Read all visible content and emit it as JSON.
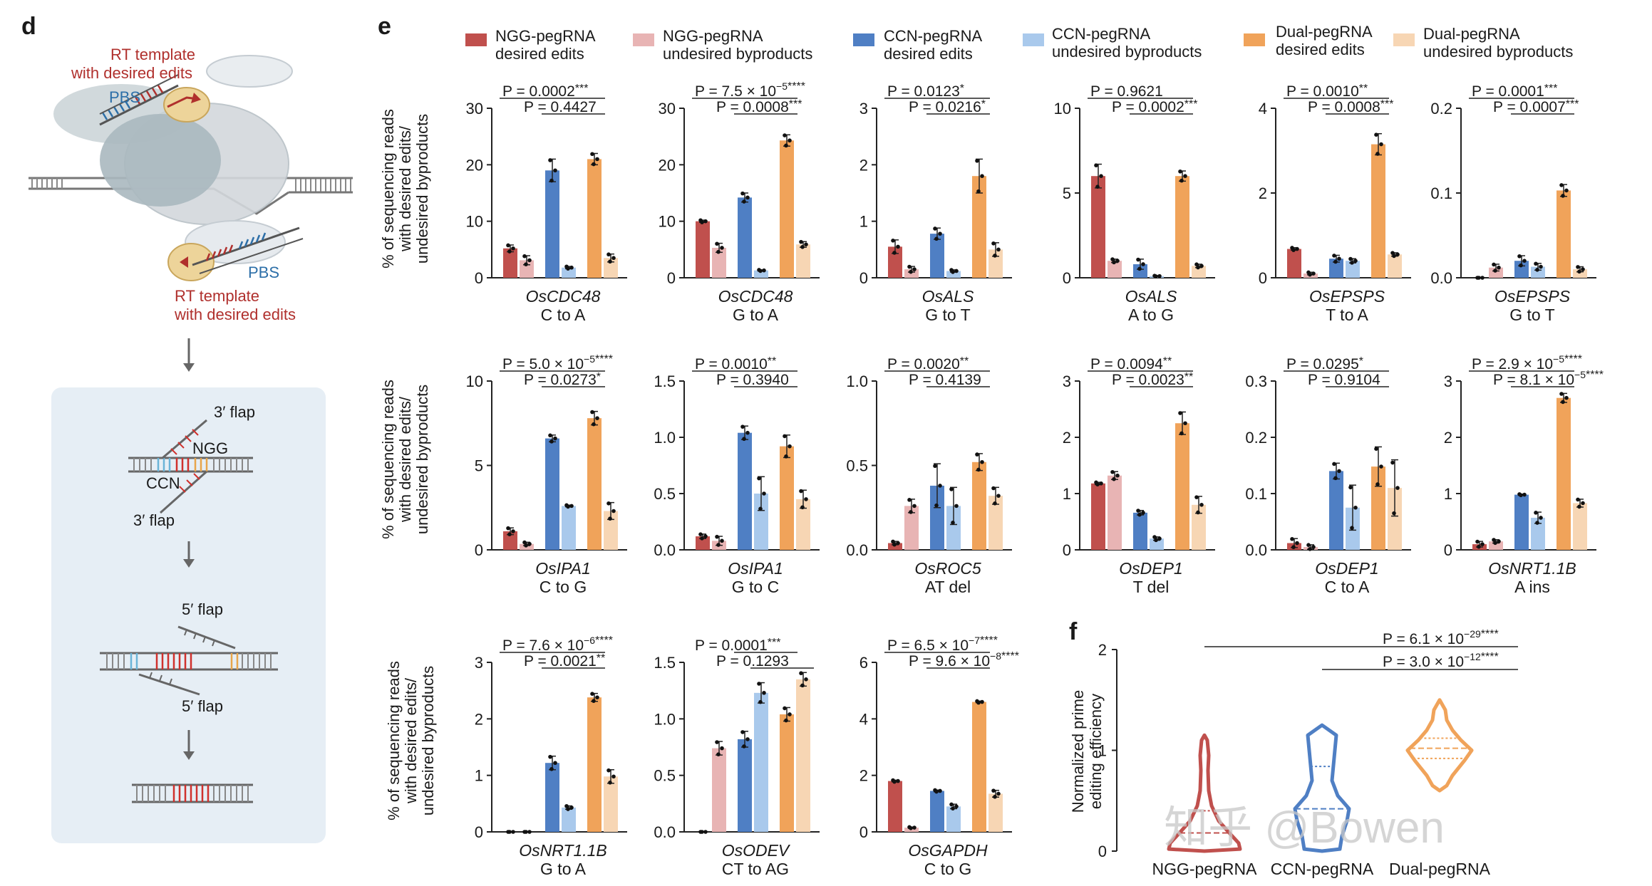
{
  "panel_labels": {
    "d": "d",
    "e": "e",
    "f": "f"
  },
  "colors": {
    "ngg_desired": "#c0504d",
    "ngg_undesired": "#e8b4b4",
    "ccn_desired": "#4f7fc4",
    "ccn_undesired": "#a9c9ec",
    "dual_desired": "#f0a35a",
    "dual_undesired": "#f7d6b4",
    "pbs": "#2d6fa8",
    "rt": "#b0302d",
    "box_bg": "#e6eef5"
  },
  "legend": [
    {
      "line1": "NGG-pegRNA",
      "line2": "desired edits",
      "color": "#c0504d"
    },
    {
      "line1": "NGG-pegRNA",
      "line2": "undesired byproducts",
      "color": "#e8b4b4"
    },
    {
      "line1": "CCN-pegRNA",
      "line2": "desired edits",
      "color": "#4f7fc4"
    },
    {
      "line1": "CCN-pegRNA",
      "line2": "undesired byproducts",
      "color": "#a9c9ec"
    },
    {
      "line1": "Dual-pegRNA",
      "line2": "desired edits",
      "color": "#f0a35a"
    },
    {
      "line1": "Dual-pegRNA",
      "line2": "undesired byproducts",
      "color": "#f7d6b4"
    }
  ],
  "diagram": {
    "rt_top_1": "RT template",
    "rt_top_2": "with desired edits",
    "pbs_top": "PBS",
    "pbs_bottom": "PBS",
    "rt_bottom_1": "RT template",
    "rt_bottom_2": "with desired edits",
    "flap3_top": "3′ flap",
    "ngg": "NGG",
    "ccn": "CCN",
    "flap3_bottom": "3′ flap",
    "flap5_top": "5′ flap",
    "flap5_bottom": "5′ flap"
  },
  "ylabel_lines": [
    "% of sequencing reads",
    "with desired edits/",
    "undesired byproducts"
  ],
  "chart_data": [
    {
      "type": "bar",
      "gene": "OsCDC48",
      "edit": "C to A",
      "ylim": [
        0,
        30
      ],
      "ticks": [
        "0",
        "10",
        "20",
        "30"
      ],
      "values": [
        5.2,
        3.1,
        19.0,
        1.8,
        21.0,
        3.5
      ],
      "errors": [
        0.6,
        0.8,
        2.0,
        0.2,
        1.0,
        0.7
      ],
      "pvalues": [
        {
          "label": "P = 0.0002",
          "stars": "***",
          "from": 0,
          "to": 4
        },
        {
          "label": "P = 0.4427",
          "stars": "",
          "from": 2,
          "to": 4
        }
      ]
    },
    {
      "type": "bar",
      "gene": "OsCDC48",
      "edit": "G to A",
      "ylim": [
        0,
        30
      ],
      "ticks": [
        "0",
        "10",
        "20",
        "30"
      ],
      "values": [
        10.0,
        5.3,
        14.2,
        1.3,
        24.3,
        5.9
      ],
      "errors": [
        0.2,
        0.8,
        0.8,
        0.1,
        1.0,
        0.5
      ],
      "pvalues": [
        {
          "label": "P = 7.5 × 10",
          "exp": "−5",
          "stars": "****",
          "from": 0,
          "to": 4
        },
        {
          "label": "P = 0.0008",
          "stars": "***",
          "from": 2,
          "to": 4
        }
      ]
    },
    {
      "type": "bar",
      "gene": "OsALS",
      "edit": "G to T",
      "ylim": [
        0,
        3
      ],
      "ticks": [
        "0",
        "1",
        "2",
        "3"
      ],
      "values": [
        0.55,
        0.15,
        0.78,
        0.12,
        1.8,
        0.5
      ],
      "errors": [
        0.12,
        0.05,
        0.1,
        0.02,
        0.3,
        0.12
      ],
      "pvalues": [
        {
          "label": "P = 0.0123",
          "stars": "*",
          "from": 0,
          "to": 4
        },
        {
          "label": "P = 0.0216",
          "stars": "*",
          "from": 2,
          "to": 4
        }
      ]
    },
    {
      "type": "bar",
      "gene": "OsALS",
      "edit": "A to G",
      "ylim": [
        0,
        10
      ],
      "ticks": [
        "0",
        "5",
        "10"
      ],
      "values": [
        6.0,
        1.0,
        0.8,
        0.1,
        6.0,
        0.7
      ],
      "errors": [
        0.7,
        0.1,
        0.3,
        0.02,
        0.3,
        0.1
      ],
      "pvalues": [
        {
          "label": "P = 0.9621",
          "stars": "",
          "from": 0,
          "to": 4
        },
        {
          "label": "P = 0.0002",
          "stars": "***",
          "from": 2,
          "to": 4
        }
      ]
    },
    {
      "type": "bar",
      "gene": "OsEPSPS",
      "edit": "T to A",
      "ylim": [
        0,
        4
      ],
      "ticks": [
        "0",
        "2",
        "4"
      ],
      "values": [
        0.68,
        0.1,
        0.45,
        0.4,
        3.15,
        0.55
      ],
      "errors": [
        0.03,
        0.03,
        0.08,
        0.05,
        0.25,
        0.04
      ],
      "pvalues": [
        {
          "label": "P = 0.0010",
          "stars": "**",
          "from": 0,
          "to": 4
        },
        {
          "label": "P = 0.0008",
          "stars": "***",
          "from": 2,
          "to": 4
        }
      ]
    },
    {
      "type": "bar",
      "gene": "OsEPSPS",
      "edit": "G to T",
      "ylim": [
        0,
        0.2
      ],
      "ticks": [
        "0.0",
        "0.1",
        "0.2"
      ],
      "values": [
        0.0,
        0.012,
        0.02,
        0.013,
        0.103,
        0.01
      ],
      "errors": [
        0.0,
        0.004,
        0.006,
        0.004,
        0.007,
        0.003
      ],
      "pvalues": [
        {
          "label": "P = 0.0001",
          "stars": "***",
          "from": 0,
          "to": 4
        },
        {
          "label": "P = 0.0007",
          "stars": "***",
          "from": 2,
          "to": 4
        }
      ]
    },
    {
      "type": "bar",
      "gene": "OsIPA1",
      "edit": "C to G",
      "ylim": [
        0,
        10
      ],
      "ticks": [
        "0",
        "5",
        "10"
      ],
      "values": [
        1.1,
        0.35,
        6.6,
        2.6,
        7.8,
        2.3
      ],
      "errors": [
        0.2,
        0.1,
        0.2,
        0.05,
        0.4,
        0.5
      ],
      "pvalues": [
        {
          "label": "P = 5.0 × 10",
          "exp": "−5",
          "stars": "****",
          "from": 0,
          "to": 4
        },
        {
          "label": "P = 0.0273",
          "stars": "*",
          "from": 2,
          "to": 4
        }
      ]
    },
    {
      "type": "bar",
      "gene": "OsIPA1",
      "edit": "G to C",
      "ylim": [
        0,
        1.5
      ],
      "ticks": [
        "0.0",
        "0.5",
        "1.0",
        "1.5"
      ],
      "values": [
        0.12,
        0.08,
        1.04,
        0.5,
        0.92,
        0.45
      ],
      "errors": [
        0.02,
        0.04,
        0.06,
        0.15,
        0.1,
        0.08
      ],
      "pvalues": [
        {
          "label": "P = 0.0010",
          "stars": "**",
          "from": 0,
          "to": 4
        },
        {
          "label": "P = 0.3940",
          "stars": "",
          "from": 2,
          "to": 4
        }
      ]
    },
    {
      "type": "bar",
      "gene": "OsROC5",
      "edit": "AT del",
      "ylim": [
        0,
        1.0
      ],
      "ticks": [
        "0.0",
        "0.5",
        "1.0"
      ],
      "values": [
        0.04,
        0.26,
        0.38,
        0.26,
        0.52,
        0.32
      ],
      "errors": [
        0.01,
        0.04,
        0.13,
        0.11,
        0.05,
        0.05
      ],
      "pvalues": [
        {
          "label": "P = 0.0020",
          "stars": "**",
          "from": 0,
          "to": 4
        },
        {
          "label": "P = 0.4139",
          "stars": "",
          "from": 2,
          "to": 4
        }
      ]
    },
    {
      "type": "bar",
      "gene": "OsDEP1",
      "edit": "T del",
      "ylim": [
        0,
        3
      ],
      "ticks": [
        "0",
        "1",
        "2",
        "3"
      ],
      "values": [
        1.18,
        1.32,
        0.66,
        0.2,
        2.25,
        0.8
      ],
      "errors": [
        0.02,
        0.07,
        0.04,
        0.03,
        0.2,
        0.15
      ],
      "pvalues": [
        {
          "label": "P = 0.0094",
          "stars": "**",
          "from": 0,
          "to": 4
        },
        {
          "label": "P = 0.0023",
          "stars": "**",
          "from": 2,
          "to": 4
        }
      ]
    },
    {
      "type": "bar",
      "gene": "OsDEP1",
      "edit": "C to A",
      "ylim": [
        0,
        0.3
      ],
      "ticks": [
        "0.0",
        "0.1",
        "0.2",
        "0.3"
      ],
      "values": [
        0.012,
        0.005,
        0.14,
        0.075,
        0.148,
        0.11
      ],
      "errors": [
        0.008,
        0.004,
        0.014,
        0.04,
        0.035,
        0.05
      ],
      "pvalues": [
        {
          "label": "P = 0.0295",
          "stars": "*",
          "from": 0,
          "to": 4
        },
        {
          "label": "P = 0.9104",
          "stars": "",
          "from": 2,
          "to": 4
        }
      ]
    },
    {
      "type": "bar",
      "gene": "OsNRT1.1B",
      "edit": "A ins",
      "ylim": [
        0,
        3
      ],
      "ticks": [
        "0",
        "1",
        "2",
        "3"
      ],
      "values": [
        0.1,
        0.15,
        0.98,
        0.57,
        2.7,
        0.83
      ],
      "errors": [
        0.05,
        0.03,
        0.01,
        0.1,
        0.08,
        0.07
      ],
      "pvalues": [
        {
          "label": "P = 2.9 × 10",
          "exp": "−5",
          "stars": "****",
          "from": 0,
          "to": 4
        },
        {
          "label": "P = 8.1 × 10",
          "exp": "−5",
          "stars": "****",
          "from": 2,
          "to": 4
        }
      ]
    },
    {
      "type": "bar",
      "gene": "OsNRT1.1B",
      "edit": "G to A",
      "ylim": [
        0,
        3
      ],
      "ticks": [
        "0",
        "1",
        "2",
        "3"
      ],
      "values": [
        0.0,
        0.0,
        1.22,
        0.43,
        2.38,
        0.98
      ],
      "errors": [
        0.0,
        0.0,
        0.12,
        0.03,
        0.07,
        0.12
      ],
      "pvalues": [
        {
          "label": "P = 7.6 × 10",
          "exp": "−6",
          "stars": "****",
          "from": 0,
          "to": 4
        },
        {
          "label": "P = 0.0021",
          "stars": "**",
          "from": 2,
          "to": 4
        }
      ]
    },
    {
      "type": "bar",
      "gene": "OsODEV",
      "edit": "CT to AG",
      "ylim": [
        0,
        1.5
      ],
      "ticks": [
        "0.0",
        "0.5",
        "1.0",
        "1.5"
      ],
      "values": [
        0.0,
        0.74,
        0.82,
        1.23,
        1.04,
        1.35
      ],
      "errors": [
        0.0,
        0.06,
        0.07,
        0.09,
        0.06,
        0.06
      ],
      "pvalues": [
        {
          "label": "P = 0.0001",
          "stars": "***",
          "from": 2,
          "to": 4
        },
        {
          "label": "P = 0.1293",
          "stars": "",
          "from": 3,
          "to": 5
        }
      ]
    },
    {
      "type": "bar",
      "gene": "OsGAPDH",
      "edit": "C to G",
      "ylim": [
        0,
        6
      ],
      "ticks": [
        "0",
        "2",
        "4",
        "6"
      ],
      "values": [
        1.8,
        0.15,
        1.45,
        0.9,
        4.6,
        1.35
      ],
      "errors": [
        0.03,
        0.02,
        0.03,
        0.08,
        0.03,
        0.12
      ],
      "pvalues": [
        {
          "label": "P = 6.5 × 10",
          "exp": "−7",
          "stars": "****",
          "from": 0,
          "to": 4
        },
        {
          "label": "P = 9.6 × 10",
          "exp": "−8",
          "stars": "****",
          "from": 2,
          "to": 4
        }
      ]
    },
    {
      "type": "violin",
      "ylabel_1": "Normalized prime",
      "ylabel_2": "editing efficiency",
      "ylim": [
        0,
        2
      ],
      "ticks": [
        "0",
        "1",
        "2"
      ],
      "categories": [
        "NGG-pegRNA",
        "CCN-pegRNA",
        "Dual-pegRNA"
      ],
      "medians": [
        0.18,
        0.42,
        1.02
      ],
      "q1": [
        0.18,
        0.42,
        0.92
      ],
      "q3": [
        0.4,
        0.84,
        1.12
      ],
      "pvalues": [
        {
          "label": "P = 6.1 × 10",
          "exp": "−29",
          "stars": "****"
        },
        {
          "label": "P = 3.0 × 10",
          "exp": "−12",
          "stars": "****"
        }
      ]
    }
  ],
  "watermark": "知乎 @Bowen"
}
